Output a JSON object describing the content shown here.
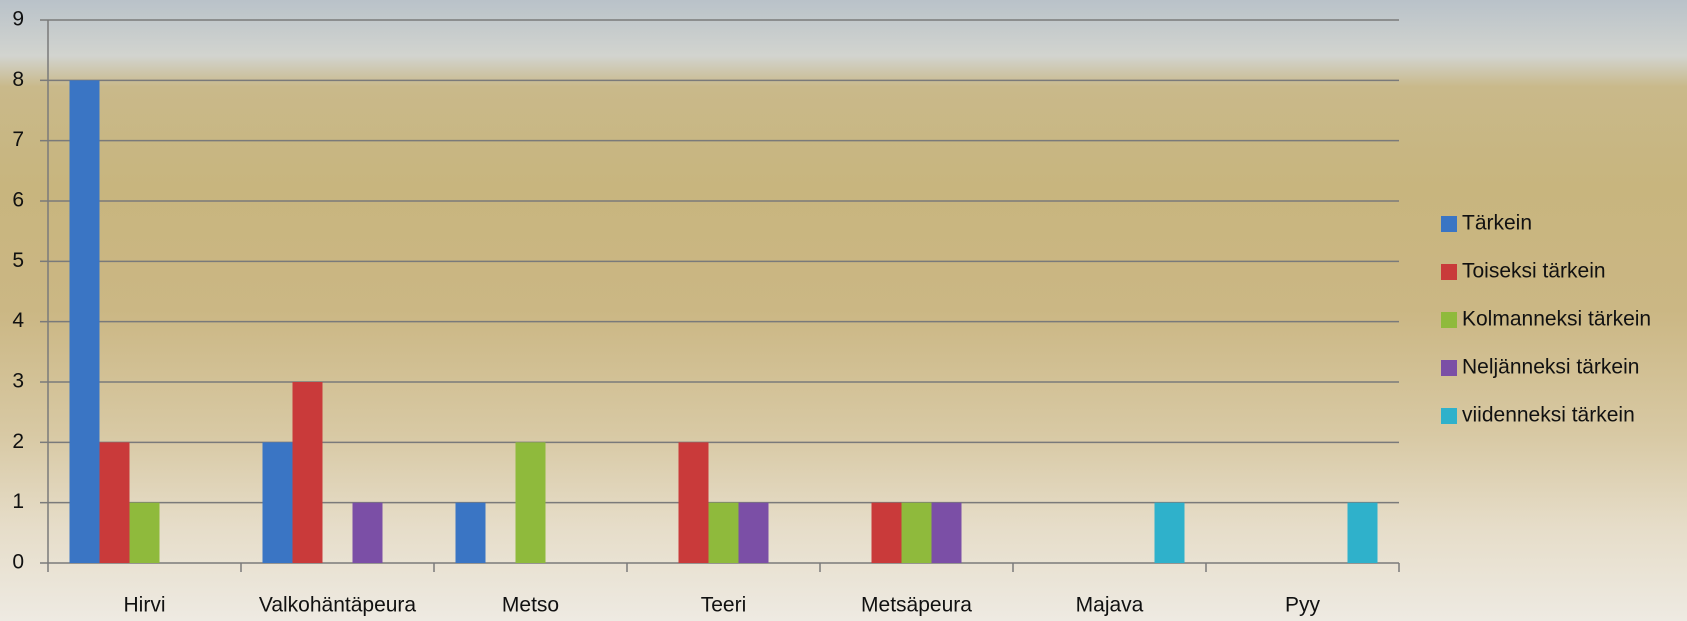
{
  "chart_data": {
    "type": "bar",
    "categories": [
      "Hirvi",
      "Valkohäntäpeura",
      "Metso",
      "Teeri",
      "Metsäpeura",
      "Majava",
      "Pyy"
    ],
    "series": [
      {
        "name": "Tärkein",
        "color": "#3a75c4",
        "values": [
          8,
          2,
          1,
          0,
          0,
          0,
          0
        ]
      },
      {
        "name": "Toiseksi tärkein",
        "color": "#c93a3a",
        "values": [
          2,
          3,
          0,
          2,
          1,
          0,
          0
        ]
      },
      {
        "name": "Kolmanneksi tärkein",
        "color": "#8fba3c",
        "values": [
          1,
          0,
          2,
          1,
          1,
          0,
          0
        ]
      },
      {
        "name": "Neljänneksi tärkein",
        "color": "#7b4fa6",
        "values": [
          0,
          1,
          0,
          1,
          1,
          0,
          0
        ]
      },
      {
        "name": " viidenneksi tärkein",
        "color": "#2fb1cb",
        "values": [
          0,
          0,
          0,
          0,
          0,
          1,
          1
        ]
      }
    ],
    "ylim": [
      0,
      9
    ],
    "yticks": [
      0,
      1,
      2,
      3,
      4,
      5,
      6,
      7,
      8,
      9
    ],
    "grid": true,
    "legend": "right"
  }
}
